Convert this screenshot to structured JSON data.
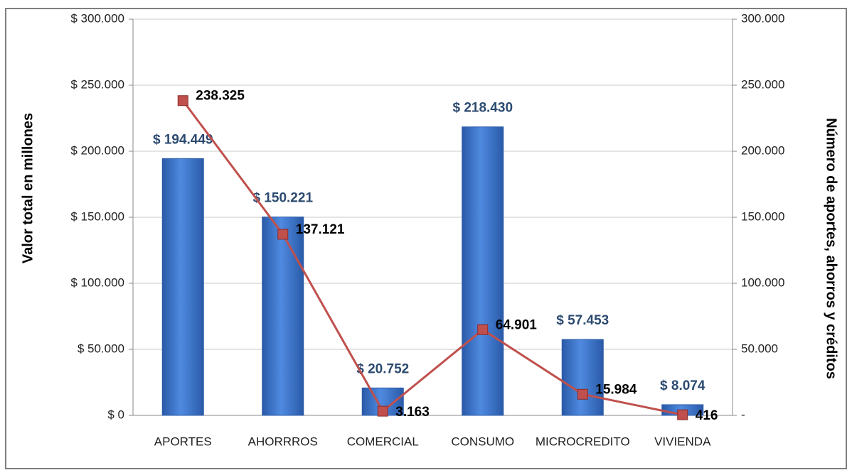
{
  "chart_data": {
    "type": "bar_line",
    "ylabel": "Valor total en millones",
    "y2label": "Número de aportes, ahorros y créditos",
    "categories": [
      "APORTES",
      "AHORRROS",
      "COMERCIAL",
      "CONSUMO",
      "MICROCREDITO",
      "VIVIENDA"
    ],
    "series": [
      {
        "type": "bar",
        "color": "#3a6fc4",
        "values": [
          194449,
          150221,
          20752,
          218430,
          57453,
          8074
        ],
        "value_labels": [
          "$ 194.449",
          "$ 150.221",
          "$ 20.752",
          "$ 218.430",
          "$ 57.453",
          "$ 8.074"
        ]
      },
      {
        "type": "line",
        "axis": "y2",
        "color": "#c0504d",
        "values": [
          238325,
          137121,
          3163,
          64901,
          15984,
          416
        ],
        "value_labels": [
          "238.325",
          "137.121",
          "3.163",
          "64.901",
          "15.984",
          "416"
        ]
      }
    ],
    "ylim": [
      0,
      300000
    ],
    "yticks": [
      {
        "value": 0,
        "label": "$ 0"
      },
      {
        "value": 50000,
        "label": "$ 50.000"
      },
      {
        "value": 100000,
        "label": "$ 100.000"
      },
      {
        "value": 150000,
        "label": "$ 150.000"
      },
      {
        "value": 200000,
        "label": "$ 200.000"
      },
      {
        "value": 250000,
        "label": "$ 250.000"
      },
      {
        "value": 300000,
        "label": "$ 300.000"
      }
    ],
    "y2lim": [
      0,
      300000
    ],
    "y2ticks": [
      {
        "value": 0,
        "label": "-"
      },
      {
        "value": 50000,
        "label": "50.000"
      },
      {
        "value": 100000,
        "label": "100.000"
      },
      {
        "value": 150000,
        "label": "150.000"
      },
      {
        "value": 200000,
        "label": "200.000"
      },
      {
        "value": 250000,
        "label": "250.000"
      },
      {
        "value": 300000,
        "label": "300.000"
      }
    ],
    "grid": true
  }
}
